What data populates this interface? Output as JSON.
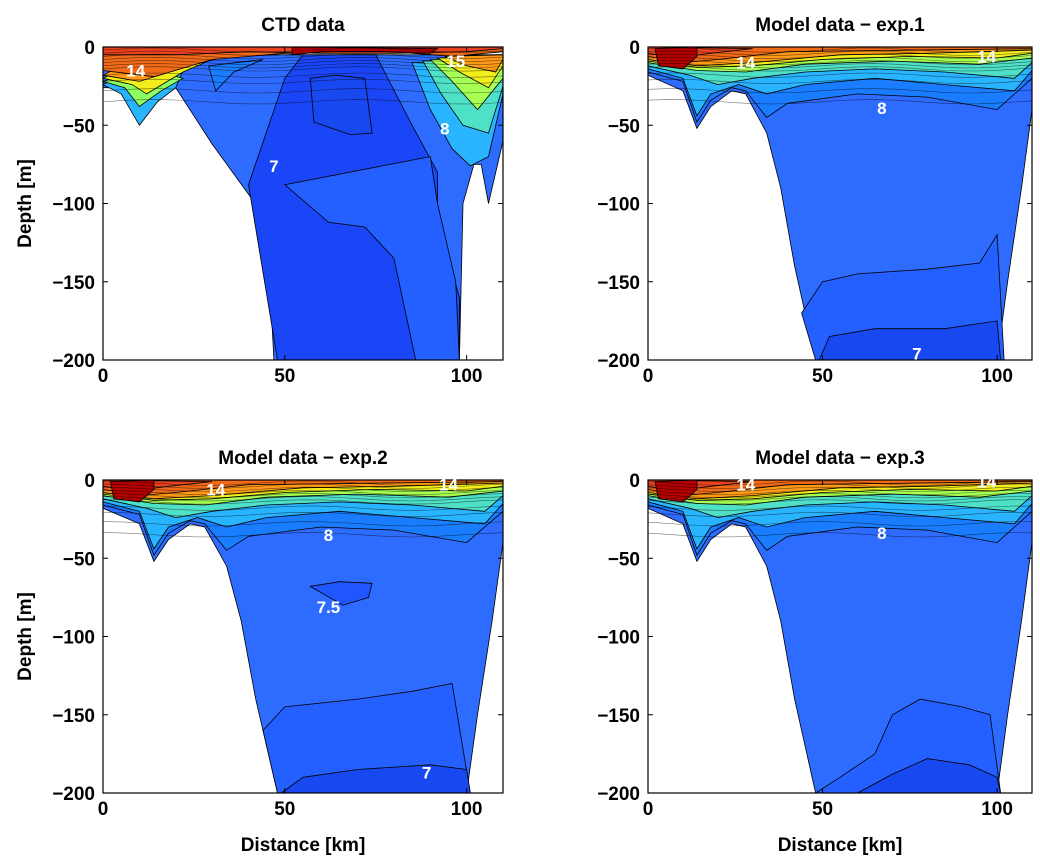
{
  "chart_data": [
    {
      "type": "contour",
      "title": "CTD data",
      "xlabel": "",
      "ylabel": "Depth [m]",
      "xlim": [
        0,
        110
      ],
      "ylim": [
        -200,
        0
      ],
      "xticks": [
        "0",
        "50",
        "100"
      ],
      "yticks": [
        "0",
        "−50",
        "−100",
        "−150",
        "−200"
      ],
      "contour_labels": [
        {
          "text": "14",
          "x": 9,
          "y": -15
        },
        {
          "text": "15",
          "x": 97,
          "y": -9
        },
        {
          "text": "8",
          "x": 94,
          "y": -52
        },
        {
          "text": "7",
          "x": 47,
          "y": -76
        }
      ]
    },
    {
      "type": "contour",
      "title": "Model data − exp.1",
      "xlabel": "",
      "ylabel": "",
      "xlim": [
        0,
        110
      ],
      "ylim": [
        -200,
        0
      ],
      "xticks": [
        "0",
        "50",
        "100"
      ],
      "yticks": [
        "0",
        "−50",
        "−100",
        "−150",
        "−200"
      ],
      "contour_labels": [
        {
          "text": "14",
          "x": 28,
          "y": -10
        },
        {
          "text": "14",
          "x": 97,
          "y": -6
        },
        {
          "text": "8",
          "x": 67,
          "y": -39
        },
        {
          "text": "7",
          "x": 77,
          "y": -196
        }
      ]
    },
    {
      "type": "contour",
      "title": "Model data − exp.2",
      "xlabel": "",
      "ylabel": "Depth [m]",
      "xlim": [
        0,
        110
      ],
      "ylim": [
        -200,
        0
      ],
      "xticks": [
        "0",
        "50",
        "100"
      ],
      "yticks": [
        "0",
        "−50",
        "−100",
        "−150",
        "−200"
      ],
      "contour_labels": [
        {
          "text": "14",
          "x": 31,
          "y": -6
        },
        {
          "text": "14",
          "x": 95,
          "y": -3
        },
        {
          "text": "8",
          "x": 62,
          "y": -35
        },
        {
          "text": "7.5",
          "x": 62,
          "y": -81
        },
        {
          "text": "7",
          "x": 89,
          "y": -187
        }
      ]
    },
    {
      "type": "contour",
      "title": "Model data − exp.3",
      "xlabel": "Distance [km]",
      "ylabel": "",
      "xlim": [
        0,
        110
      ],
      "ylim": [
        -200,
        0
      ],
      "xticks": [
        "0",
        "50",
        "100"
      ],
      "yticks": [
        "0",
        "−50",
        "−100",
        "−150",
        "−200"
      ],
      "contour_labels": [
        {
          "text": "14",
          "x": 28,
          "y": -3
        },
        {
          "text": "14",
          "x": 97,
          "y": -1
        },
        {
          "text": "8",
          "x": 67,
          "y": -34
        }
      ]
    }
  ],
  "bottom_left_xlabel": "Distance [km]",
  "colors": {
    "warm_surface": "#e83a1e",
    "hot_core": "#b20000",
    "mid_blue": "#1f5cff",
    "deep_blue": "#1436f5",
    "cyan": "#28b4ff",
    "yellow": "#f4f020"
  }
}
